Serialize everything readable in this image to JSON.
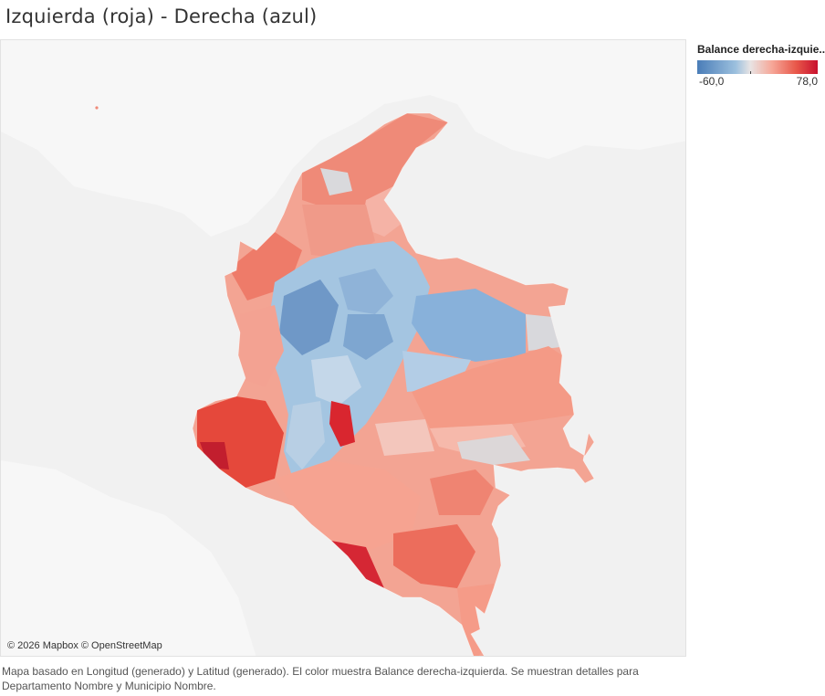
{
  "title": "Izquierda (roja) - Derecha (azul)",
  "legend": {
    "title": "Balance derecha-izquie..",
    "min_label": "-60,0",
    "max_label": "78,0",
    "colors": {
      "min": "#4a7db8",
      "neutral": "#e8e4e4",
      "max": "#c8102e"
    }
  },
  "map": {
    "attribution": "© 2026 Mapbox © OpenStreetMap"
  },
  "caption": {
    "line1": "Mapa basado en Longitud (generado) y Latitud (generado).  El color muestra Balance derecha-izquierda.  Se muestran detalles para",
    "line2": "Departamento Nombre y Municipio Nombre."
  }
}
